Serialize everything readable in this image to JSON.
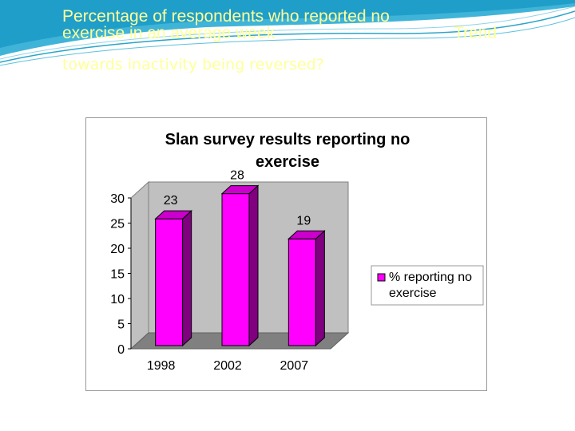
{
  "slide": {
    "title_line1": "Percentage of respondents who reported no",
    "title_line2": "exercise in an average week",
    "title_trend": "Trend",
    "subtitle": "towards inactivity being reversed?"
  },
  "colors": {
    "bar": "#ff00ff",
    "bar_side": "#800080",
    "bar_top": "#cc00cc",
    "plot_back": "#c0c0c0",
    "plot_floor": "#808080",
    "title_text": "#ffff99",
    "wave": "#2aa4c8"
  },
  "chart_data": {
    "type": "bar",
    "title": "Slan survey results reporting no exercise",
    "categories": [
      "1998",
      "2002",
      "2007"
    ],
    "series": [
      {
        "name": "% reporting no exercise",
        "values": [
          23,
          28,
          19
        ]
      }
    ],
    "data_labels": [
      "23",
      "28",
      "19"
    ],
    "yticks": [
      "0",
      "5",
      "10",
      "15",
      "20",
      "25",
      "30"
    ],
    "ylim": [
      0,
      30
    ],
    "xlabel": "",
    "ylabel": "",
    "grid": false,
    "legend": {
      "position": "right",
      "labels": [
        "% reporting no",
        "exercise"
      ]
    },
    "style": "3d"
  }
}
